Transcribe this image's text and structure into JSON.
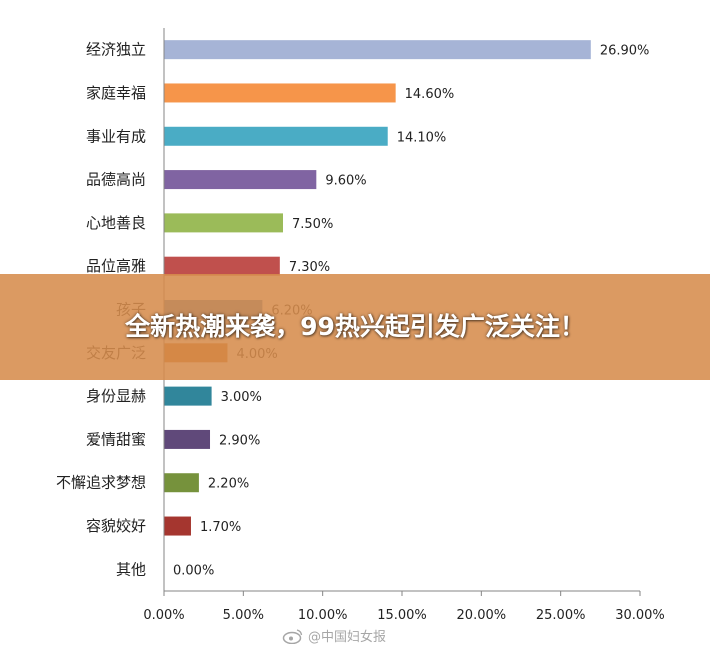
{
  "chart_data": {
    "type": "bar",
    "orientation": "horizontal",
    "categories": [
      "经济独立",
      "家庭幸福",
      "事业有成",
      "品德高尚",
      "心地善良",
      "品位高雅",
      "孩子",
      "交友广泛",
      "身份显赫",
      "爱情甜蜜",
      "不懈追求梦想",
      "容貌姣好",
      "其他"
    ],
    "values": [
      26.9,
      14.6,
      14.1,
      9.6,
      7.5,
      7.3,
      6.2,
      4.0,
      3.0,
      2.9,
      2.2,
      1.7,
      0.0
    ],
    "value_labels": [
      "26.90%",
      "14.60%",
      "14.10%",
      "9.60%",
      "7.50%",
      "7.30%",
      "6.20%",
      "4.00%",
      "3.00%",
      "2.90%",
      "2.20%",
      "1.70%",
      "0.00%"
    ],
    "colors": [
      "#a6b4d6",
      "#f6954a",
      "#4aacc5",
      "#8064a2",
      "#9bbb59",
      "#c0504d",
      "#4f81bd",
      "#c9691e",
      "#31869b",
      "#60497a",
      "#76923c",
      "#a5362f",
      "#1f497d"
    ],
    "xlim": [
      0,
      30
    ],
    "x_ticks": [
      "0.00%",
      "5.00%",
      "10.00%",
      "15.00%",
      "20.00%",
      "25.00%",
      "30.00%"
    ],
    "x_tick_values": [
      0,
      5,
      10,
      15,
      20,
      25,
      30
    ],
    "grid": false,
    "legend": "none"
  },
  "banner": {
    "text": "全新热潮来袭，99热兴起引发广泛关注！"
  },
  "watermark": {
    "text": "@中国妇女报"
  }
}
